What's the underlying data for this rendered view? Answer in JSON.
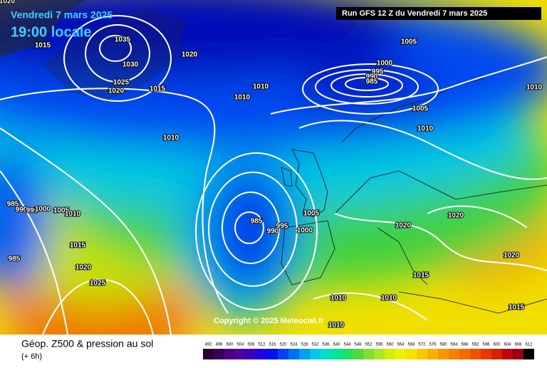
{
  "header": {
    "date": "Vendredi 7 mars 2025",
    "time": "19:00 locale",
    "run": "Run GFS 12 Z du Vendredi 7 mars 2025"
  },
  "copyright": "Copyright © 2025 Meteociel.fr",
  "legend": {
    "title": "Géop. Z500 & pression au sol",
    "step": "(+ 6h)"
  },
  "isobars": [
    "1020",
    "1015",
    "1035",
    "1030",
    "1025",
    "1020",
    "1020",
    "1015",
    "1010",
    "1010",
    "1005",
    "1000",
    "995",
    "990",
    "985",
    "1010",
    "1005",
    "1010",
    "1010",
    "985",
    "990",
    "995",
    "1000",
    "1005",
    "1010",
    "1015",
    "1020",
    "1025",
    "985",
    "990",
    "995",
    "1000",
    "1005",
    "1020",
    "1020",
    "1015",
    "1020",
    "1010",
    "1010",
    "1010",
    "1015",
    "985"
  ],
  "scale": [
    492,
    496,
    500,
    504,
    508,
    512,
    516,
    520,
    524,
    528,
    532,
    536,
    540,
    544,
    548,
    552,
    556,
    560,
    564,
    568,
    572,
    576,
    580,
    584,
    588,
    592,
    596,
    600,
    604,
    608,
    612
  ]
}
